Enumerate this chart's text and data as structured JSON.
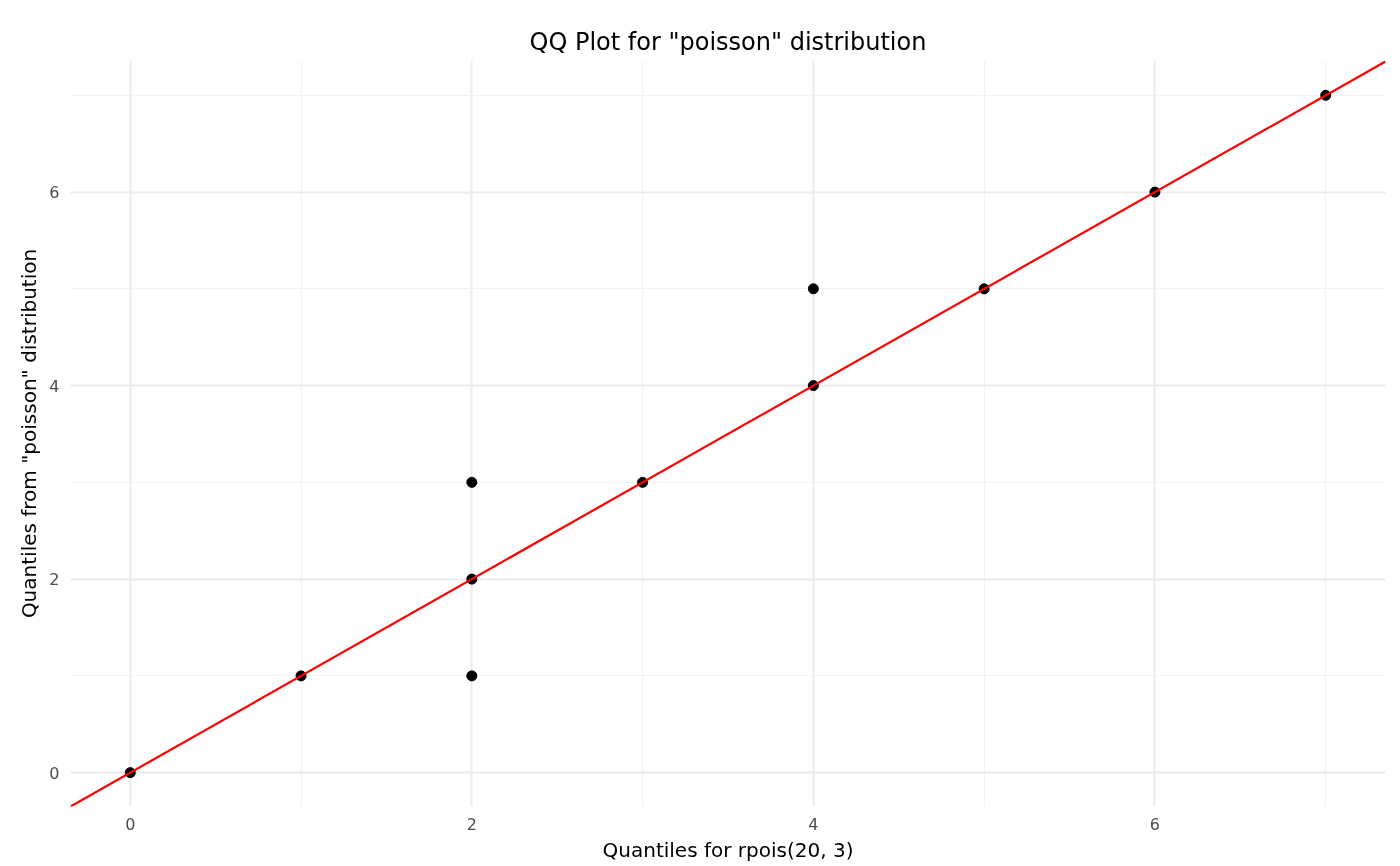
{
  "chart_data": {
    "type": "scatter",
    "title": "QQ Plot for \"poisson\" distribution",
    "xlabel": "Quantiles for rpois(20, 3)",
    "ylabel": "Quantiles from \"poisson\" distribution",
    "xlim": [
      -0.35,
      7.35
    ],
    "ylim": [
      -0.35,
      7.36
    ],
    "xticks": [
      0,
      2,
      4,
      6
    ],
    "yticks": [
      0,
      2,
      4,
      6
    ],
    "grid": true,
    "marker": "circle",
    "series": [
      {
        "color": "#000000",
        "x": [
          0,
          1,
          2,
          2,
          2,
          3,
          4,
          4,
          5,
          6,
          7
        ],
        "values": [
          0,
          1,
          1,
          2,
          3,
          3,
          4,
          5,
          5,
          6,
          7
        ]
      },
      {
        "type": "line",
        "color": "#ff0000",
        "line_style": "solid",
        "marker": "none",
        "x": [
          -0.35,
          7.35
        ],
        "values": [
          -0.35,
          7.35
        ]
      }
    ]
  }
}
